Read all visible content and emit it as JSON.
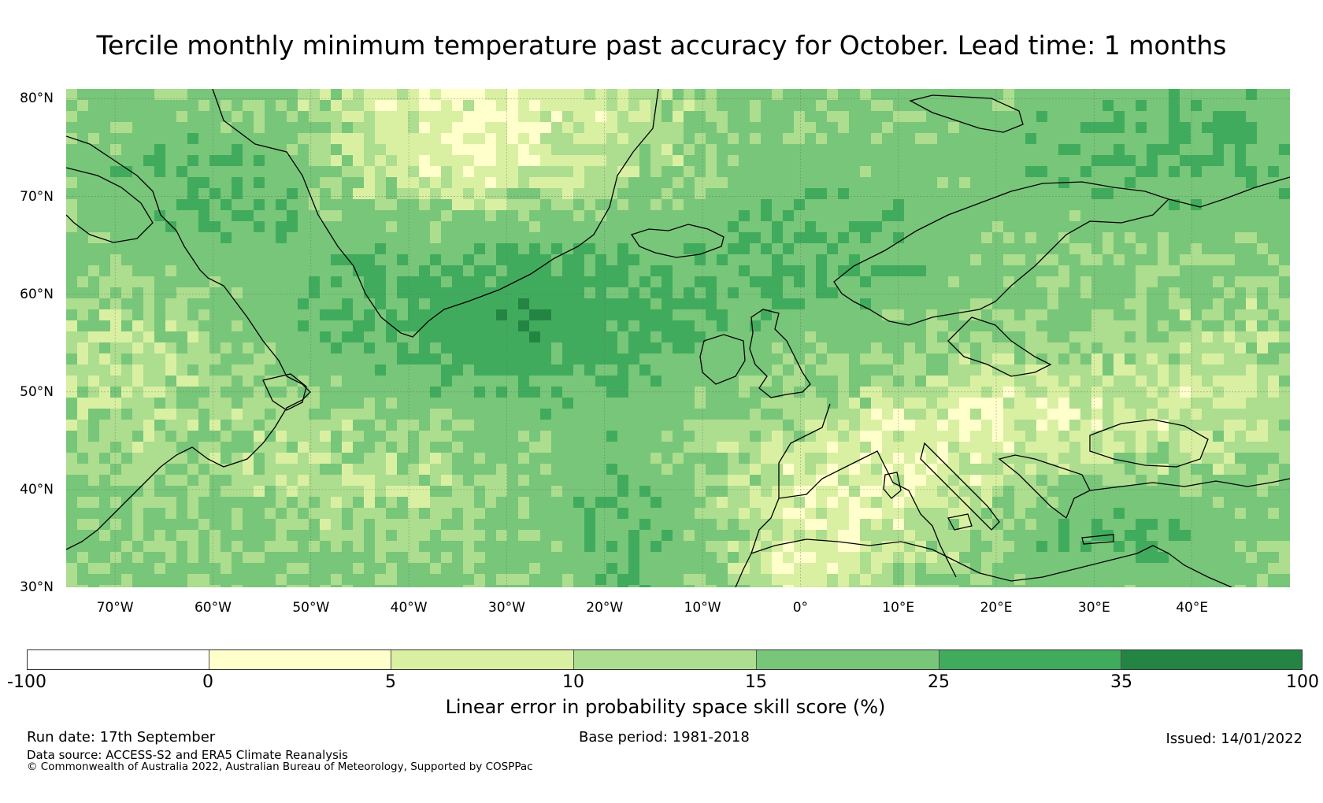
{
  "title": "Tercile monthly minimum temperature past accuracy for October. Lead time: 1 months",
  "map": {
    "lon_range": [
      -75,
      50
    ],
    "lat_range": [
      30,
      81
    ],
    "lat_ticks": [
      {
        "value": 80,
        "label": "80°N"
      },
      {
        "value": 70,
        "label": "70°N"
      },
      {
        "value": 60,
        "label": "60°N"
      },
      {
        "value": 50,
        "label": "50°N"
      },
      {
        "value": 40,
        "label": "40°N"
      },
      {
        "value": 30,
        "label": "30°N"
      }
    ],
    "lon_ticks": [
      {
        "value": -70,
        "label": "70°W"
      },
      {
        "value": -60,
        "label": "60°W"
      },
      {
        "value": -50,
        "label": "50°W"
      },
      {
        "value": -40,
        "label": "40°W"
      },
      {
        "value": -30,
        "label": "30°W"
      },
      {
        "value": -20,
        "label": "20°W"
      },
      {
        "value": -10,
        "label": "10°W"
      },
      {
        "value": 0,
        "label": "0°"
      },
      {
        "value": 10,
        "label": "10°E"
      },
      {
        "value": 20,
        "label": "20°E"
      },
      {
        "value": 30,
        "label": "30°E"
      },
      {
        "value": 40,
        "label": "40°E"
      }
    ]
  },
  "colorbar": {
    "label": "Linear error in probability space skill score (%)",
    "bins": [
      {
        "from": "-100",
        "to": "0",
        "color": "#ffffff"
      },
      {
        "from": "0",
        "to": "5",
        "color": "#ffffcc"
      },
      {
        "from": "5",
        "to": "10",
        "color": "#d9f0a3"
      },
      {
        "from": "10",
        "to": "15",
        "color": "#addd8e"
      },
      {
        "from": "15",
        "to": "25",
        "color": "#78c679"
      },
      {
        "from": "25",
        "to": "35",
        "color": "#41ab5d"
      },
      {
        "from": "35",
        "to": "100",
        "color": "#238443"
      }
    ],
    "ticks": [
      "-100",
      "0",
      "5",
      "10",
      "15",
      "25",
      "35",
      "100"
    ]
  },
  "footer": {
    "run_date": "Run date: 17th September",
    "base_period": "Base period: 1981-2018",
    "issued": "Issued: 14/01/2022",
    "data_source": "Data source: ACCESS-S2 and ERA5 Climate Reanalysis",
    "copyright": "© Commonwealth of Australia 2022, Australian Bureau of Meteorology, Supported by COSPPac"
  }
}
